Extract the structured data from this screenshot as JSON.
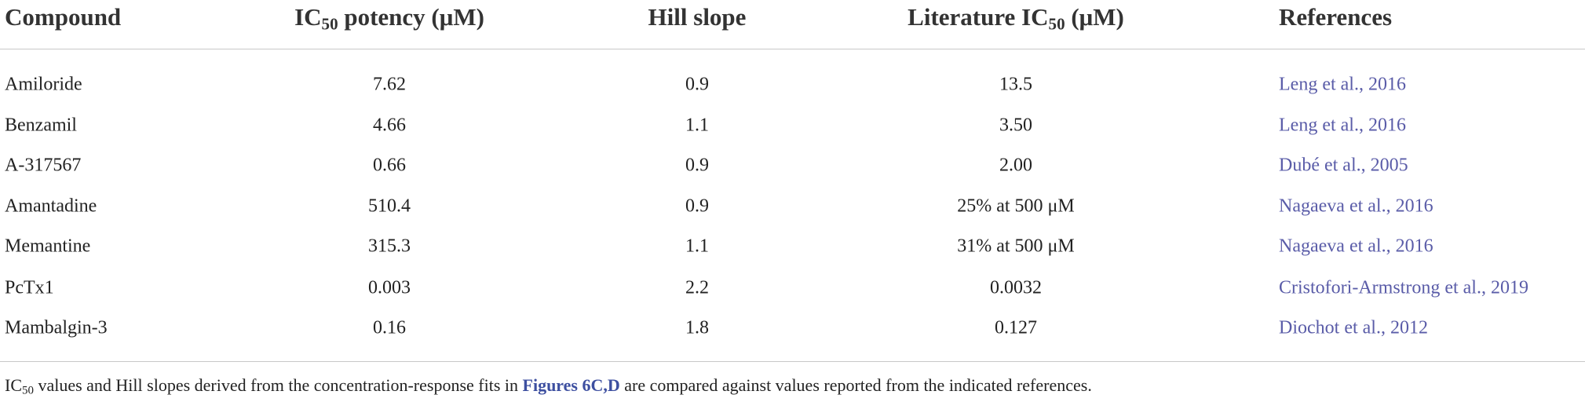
{
  "table": {
    "header": [
      "Compound",
      {
        "pre": "IC",
        "sub": "50",
        "post": " potency (μM)"
      },
      "Hill slope",
      {
        "pre": "Literature IC",
        "sub": "50",
        "post": " (μM)"
      },
      "References"
    ],
    "rows": [
      [
        "Amiloride",
        "7.62",
        "0.9",
        "13.5",
        "Leng et al., 2016"
      ],
      [
        "Benzamil",
        "4.66",
        "1.1",
        "3.50",
        "Leng et al., 2016"
      ],
      [
        "A-317567",
        "0.66",
        "0.9",
        "2.00",
        "Dubé et al., 2005"
      ],
      [
        "Amantadine",
        "510.4",
        "0.9",
        "25% at 500 μM",
        "Nagaeva et al., 2016"
      ],
      [
        "Memantine",
        "315.3",
        "1.1",
        "31% at 500 μM",
        "Nagaeva et al., 2016"
      ],
      [
        "PcTx1",
        "0.003",
        "2.2",
        "0.0032",
        "Cristofori-Armstrong et al., 2019"
      ],
      [
        "Mambalgin-3",
        "0.16",
        "1.8",
        "0.127",
        "Diochot et al., 2012"
      ]
    ]
  },
  "footnote": {
    "pre": "IC",
    "sub": "50",
    "text": " values and Hill slopes derived from the concentration-response fits in ",
    "link": "Figures 6C,D",
    "post": " are compared against values reported from the indicated references."
  }
}
